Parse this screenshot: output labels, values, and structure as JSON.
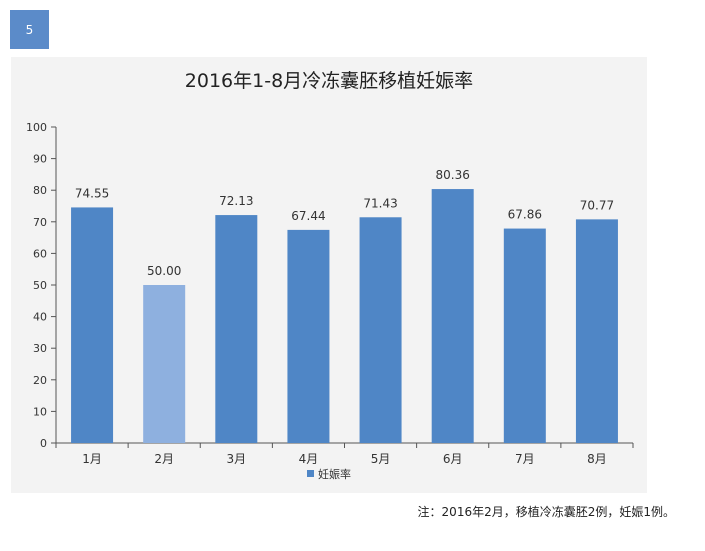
{
  "slide_number": "5",
  "footnote": "注：2016年2月，移植冷冻囊胚2例，妊娠1例。",
  "chart_data": {
    "type": "bar",
    "title": "2016年1-8月冷冻囊胚移植妊娠率",
    "categories": [
      "1月",
      "2月",
      "3月",
      "4月",
      "5月",
      "6月",
      "7月",
      "8月"
    ],
    "series": [
      {
        "name": "妊娠率",
        "values": [
          74.55,
          50.0,
          72.13,
          67.44,
          71.43,
          80.36,
          67.86,
          70.77
        ]
      }
    ],
    "data_labels": [
      "74.55",
      "50.00",
      "72.13",
      "67.44",
      "71.43",
      "80.36",
      "67.86",
      "70.77"
    ],
    "ylim": [
      0,
      100
    ],
    "yticks": [
      "0",
      "10",
      "20",
      "30",
      "40",
      "50",
      "60",
      "70",
      "80",
      "90",
      "100"
    ],
    "grid": false,
    "legend_position": "bottom",
    "colors": {
      "bar": "#4f86c6",
      "bar_highlight": "#8eb0df",
      "axis": "#555555",
      "panel": "#f3f3f3"
    },
    "highlight_index": 1
  }
}
